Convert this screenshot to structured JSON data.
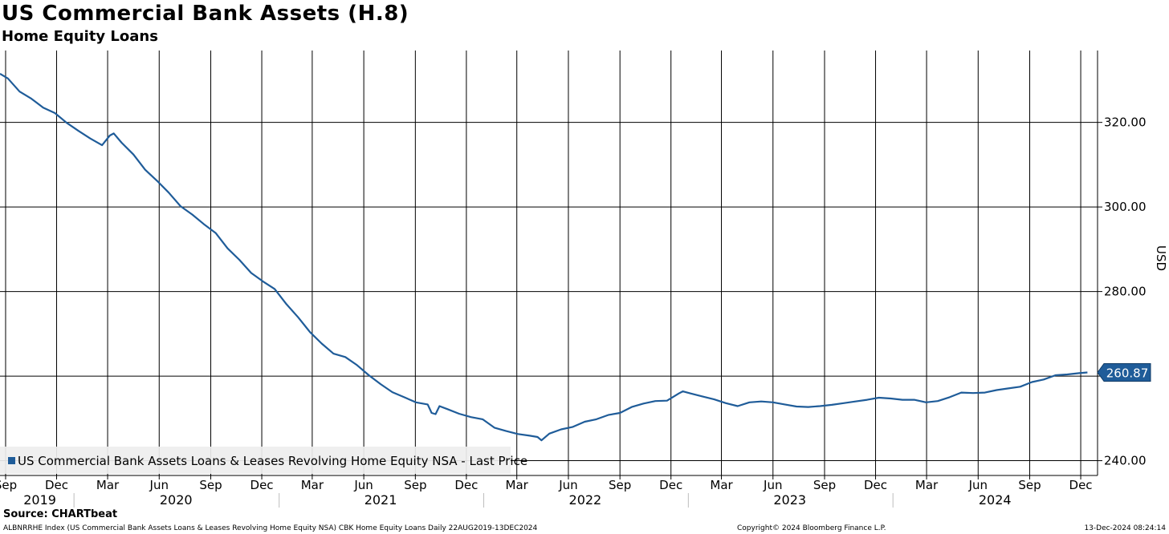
{
  "header": {
    "title": "US Commercial Bank Assets (H.8)",
    "subtitle": "Home Equity Loans"
  },
  "footer": {
    "source": "Source: CHARTbeat",
    "description": "ALBNRRHE Index (US Commercial Bank Assets Loans & Leases Revolving Home Equity NSA) CBK Home Equity Loans  Daily 22AUG2019-13DEC2024",
    "copyright": "Copyright© 2024 Bloomberg Finance L.P.",
    "timestamp": "13-Dec-2024 08:24:14"
  },
  "colors": {
    "line": "#1f5c99",
    "grid": "#000000",
    "last_price_box": "#1f5c99",
    "legend_bg": "#eeeeee"
  },
  "chart_data": {
    "type": "line",
    "ylabel": "USD",
    "ylim": [
      236.5,
      337
    ],
    "xlim": [
      "2019-08-22",
      "2024-12-31"
    ],
    "y_ticks": [
      240,
      260,
      280,
      300,
      320
    ],
    "y_tick_labels": [
      "240.00",
      "260.00",
      "280.00",
      "300.00",
      "320.00"
    ],
    "x_ticks": [
      {
        "date": "2019-09-01",
        "label": "Sep"
      },
      {
        "date": "2019-12-01",
        "label": "Dec"
      },
      {
        "date": "2020-03-01",
        "label": "Mar"
      },
      {
        "date": "2020-06-01",
        "label": "Jun"
      },
      {
        "date": "2020-09-01",
        "label": "Sep"
      },
      {
        "date": "2020-12-01",
        "label": "Dec"
      },
      {
        "date": "2021-03-01",
        "label": "Mar"
      },
      {
        "date": "2021-06-01",
        "label": "Jun"
      },
      {
        "date": "2021-09-01",
        "label": "Sep"
      },
      {
        "date": "2021-12-01",
        "label": "Dec"
      },
      {
        "date": "2022-03-01",
        "label": "Mar"
      },
      {
        "date": "2022-06-01",
        "label": "Jun"
      },
      {
        "date": "2022-09-01",
        "label": "Sep"
      },
      {
        "date": "2022-12-01",
        "label": "Dec"
      },
      {
        "date": "2023-03-01",
        "label": "Mar"
      },
      {
        "date": "2023-06-01",
        "label": "Jun"
      },
      {
        "date": "2023-09-01",
        "label": "Sep"
      },
      {
        "date": "2023-12-01",
        "label": "Dec"
      },
      {
        "date": "2024-03-01",
        "label": "Mar"
      },
      {
        "date": "2024-06-01",
        "label": "Jun"
      },
      {
        "date": "2024-09-01",
        "label": "Sep"
      },
      {
        "date": "2024-12-01",
        "label": "Dec"
      }
    ],
    "years": [
      {
        "label": "2019",
        "center": "2019-11-01",
        "start": "2019-08-22"
      },
      {
        "label": "2020",
        "center": "2020-07-01",
        "start": "2020-01-01"
      },
      {
        "label": "2021",
        "center": "2021-07-01",
        "start": "2021-01-01"
      },
      {
        "label": "2022",
        "center": "2022-07-01",
        "start": "2022-01-01"
      },
      {
        "label": "2023",
        "center": "2023-07-01",
        "start": "2023-01-01"
      },
      {
        "label": "2024",
        "center": "2024-07-01",
        "start": "2024-01-01"
      }
    ],
    "series": [
      {
        "name": "US Commercial Bank Assets Loans & Leases Revolving Home Equity NSA - Last Price",
        "last_value": "260.87",
        "points": [
          [
            "2019-08-22",
            331.5
          ],
          [
            "2019-09-05",
            330.4
          ],
          [
            "2019-09-26",
            327.3
          ],
          [
            "2019-10-17",
            325.6
          ],
          [
            "2019-11-07",
            323.5
          ],
          [
            "2019-11-28",
            322.2
          ],
          [
            "2019-12-19",
            319.9
          ],
          [
            "2020-01-09",
            318.0
          ],
          [
            "2020-01-30",
            316.2
          ],
          [
            "2020-02-20",
            314.6
          ],
          [
            "2020-03-05",
            316.9
          ],
          [
            "2020-03-12",
            317.4
          ],
          [
            "2020-03-26",
            315.2
          ],
          [
            "2020-04-16",
            312.4
          ],
          [
            "2020-05-07",
            308.8
          ],
          [
            "2020-05-28",
            306.2
          ],
          [
            "2020-06-18",
            303.4
          ],
          [
            "2020-07-09",
            300.2
          ],
          [
            "2020-07-30",
            298.2
          ],
          [
            "2020-08-20",
            295.9
          ],
          [
            "2020-09-10",
            293.8
          ],
          [
            "2020-10-01",
            290.2
          ],
          [
            "2020-10-22",
            287.5
          ],
          [
            "2020-11-12",
            284.4
          ],
          [
            "2020-12-03",
            282.4
          ],
          [
            "2020-12-24",
            280.6
          ],
          [
            "2021-01-14",
            277.0
          ],
          [
            "2021-02-04",
            273.9
          ],
          [
            "2021-02-25",
            270.4
          ],
          [
            "2021-03-18",
            267.7
          ],
          [
            "2021-04-08",
            265.3
          ],
          [
            "2021-04-29",
            264.5
          ],
          [
            "2021-05-20",
            262.6
          ],
          [
            "2021-06-10",
            260.2
          ],
          [
            "2021-07-01",
            258.1
          ],
          [
            "2021-07-22",
            256.2
          ],
          [
            "2021-08-12",
            255.0
          ],
          [
            "2021-09-02",
            253.8
          ],
          [
            "2021-09-23",
            253.3
          ],
          [
            "2021-09-30",
            251.3
          ],
          [
            "2021-10-07",
            251.0
          ],
          [
            "2021-10-14",
            252.9
          ],
          [
            "2021-10-28",
            252.2
          ],
          [
            "2021-11-18",
            251.1
          ],
          [
            "2021-12-09",
            250.3
          ],
          [
            "2021-12-30",
            249.8
          ],
          [
            "2022-01-20",
            247.8
          ],
          [
            "2022-02-10",
            247.0
          ],
          [
            "2022-03-03",
            246.3
          ],
          [
            "2022-03-24",
            245.9
          ],
          [
            "2022-04-07",
            245.6
          ],
          [
            "2022-04-14",
            244.8
          ],
          [
            "2022-04-28",
            246.4
          ],
          [
            "2022-05-19",
            247.4
          ],
          [
            "2022-06-09",
            248.0
          ],
          [
            "2022-06-30",
            249.2
          ],
          [
            "2022-07-21",
            249.8
          ],
          [
            "2022-08-11",
            250.8
          ],
          [
            "2022-09-01",
            251.3
          ],
          [
            "2022-09-22",
            252.7
          ],
          [
            "2022-10-13",
            253.5
          ],
          [
            "2022-11-03",
            254.1
          ],
          [
            "2022-11-24",
            254.2
          ],
          [
            "2022-12-15",
            255.9
          ],
          [
            "2022-12-22",
            256.4
          ],
          [
            "2023-01-05",
            255.9
          ],
          [
            "2023-01-26",
            255.2
          ],
          [
            "2023-02-16",
            254.5
          ],
          [
            "2023-03-09",
            253.6
          ],
          [
            "2023-03-30",
            252.9
          ],
          [
            "2023-04-20",
            253.8
          ],
          [
            "2023-05-11",
            254.0
          ],
          [
            "2023-06-01",
            253.8
          ],
          [
            "2023-06-22",
            253.3
          ],
          [
            "2023-07-13",
            252.8
          ],
          [
            "2023-08-03",
            252.7
          ],
          [
            "2023-08-24",
            252.9
          ],
          [
            "2023-09-14",
            253.2
          ],
          [
            "2023-10-05",
            253.6
          ],
          [
            "2023-10-26",
            254.0
          ],
          [
            "2023-11-16",
            254.4
          ],
          [
            "2023-12-07",
            254.9
          ],
          [
            "2023-12-28",
            254.7
          ],
          [
            "2024-01-18",
            254.4
          ],
          [
            "2024-02-08",
            254.4
          ],
          [
            "2024-02-29",
            253.8
          ],
          [
            "2024-03-21",
            254.1
          ],
          [
            "2024-04-11",
            255.0
          ],
          [
            "2024-05-02",
            256.1
          ],
          [
            "2024-05-23",
            256.0
          ],
          [
            "2024-06-13",
            256.1
          ],
          [
            "2024-07-04",
            256.7
          ],
          [
            "2024-07-25",
            257.1
          ],
          [
            "2024-08-15",
            257.5
          ],
          [
            "2024-09-05",
            258.6
          ],
          [
            "2024-09-26",
            259.2
          ],
          [
            "2024-10-17",
            260.2
          ],
          [
            "2024-11-07",
            260.4
          ],
          [
            "2024-11-28",
            260.7
          ],
          [
            "2024-12-13",
            260.87
          ]
        ]
      }
    ],
    "legend": {
      "placement": "bottom-left",
      "label": "US Commercial Bank Assets Loans & Leases Revolving Home Equity NSA - Last Price"
    },
    "grid": true
  }
}
